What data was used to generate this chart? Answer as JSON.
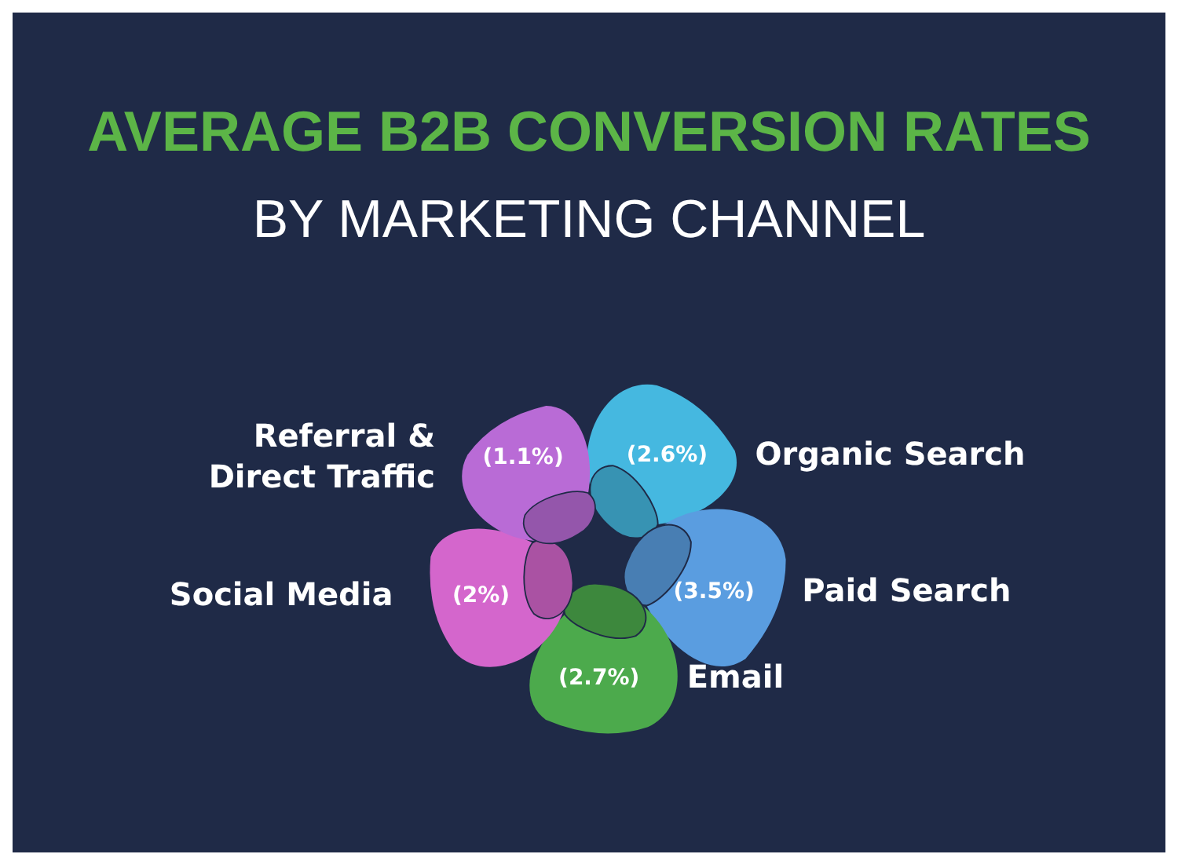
{
  "chart_data": {
    "type": "other",
    "title": "AVERAGE B2B CONVERSION RATES",
    "subtitle": "BY MARKETING CHANNEL",
    "categories": [
      "Organic Search",
      "Paid Search",
      "Email",
      "Social Media",
      "Referral &\nDirect Traffic"
    ],
    "values": [
      2.6,
      3.5,
      2.7,
      2,
      1.1
    ],
    "value_labels": [
      "(2.6%)",
      "(3.5%)",
      "(2.7%)",
      "(2%)",
      "(1.1%)"
    ],
    "colors": [
      "#45b8e0",
      "#5a9de0",
      "#4caa4c",
      "#d466cc",
      "#b96bd6"
    ]
  }
}
